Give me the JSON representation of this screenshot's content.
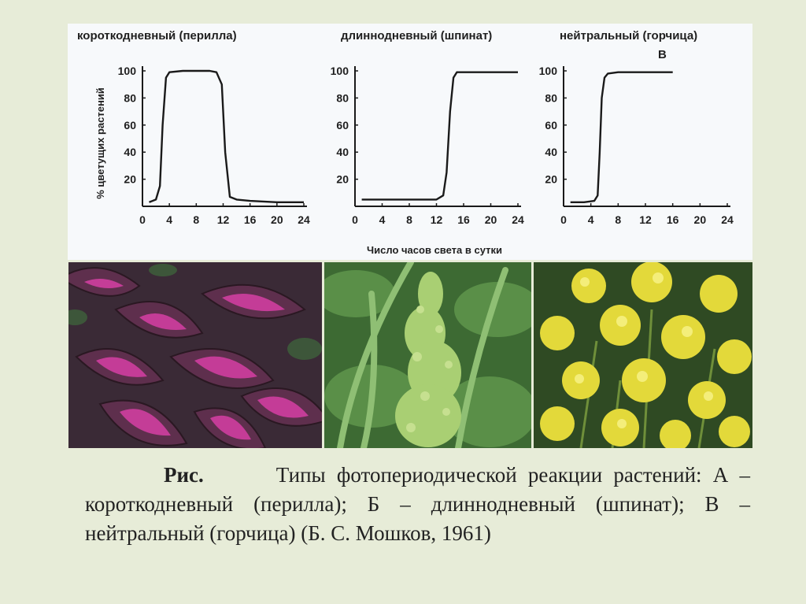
{
  "chart_data": [
    {
      "type": "line",
      "title": "короткодневный (перилла)",
      "ylabel": "% цветущих растений",
      "xticks": [
        "0",
        "4",
        "8",
        "12",
        "16",
        "20",
        "24"
      ],
      "yticks": [
        "20",
        "40",
        "60",
        "80",
        "100"
      ],
      "xlim": [
        0,
        24
      ],
      "ylim": [
        0,
        100
      ],
      "x": [
        1,
        2,
        2.6,
        3,
        3.5,
        4,
        6,
        8,
        10,
        11,
        11.8,
        12.3,
        13,
        14,
        16,
        20,
        24
      ],
      "y": [
        3,
        5,
        15,
        60,
        95,
        99,
        100,
        100,
        100,
        99,
        90,
        40,
        7,
        5,
        4,
        3,
        3
      ]
    },
    {
      "type": "line",
      "title": "длиннодневный (шпинат)",
      "xticks": [
        "0",
        "4",
        "8",
        "12",
        "16",
        "20",
        "24"
      ],
      "yticks": [
        "20",
        "40",
        "60",
        "80",
        "100"
      ],
      "xlim": [
        0,
        24
      ],
      "ylim": [
        0,
        100
      ],
      "x": [
        1,
        4,
        8,
        12,
        13,
        13.5,
        14,
        14.5,
        15,
        16,
        20,
        24
      ],
      "y": [
        5,
        5,
        5,
        5,
        8,
        25,
        70,
        95,
        99,
        99,
        99,
        99
      ]
    },
    {
      "type": "line",
      "title": "нейтральный (горчица)",
      "xticks": [
        "0",
        "4",
        "8",
        "12",
        "16",
        "20",
        "24"
      ],
      "yticks": [
        "20",
        "40",
        "60",
        "80",
        "100"
      ],
      "xlim": [
        0,
        24
      ],
      "ylim": [
        0,
        100
      ],
      "x": [
        1,
        3,
        4.5,
        5,
        5.3,
        5.6,
        6,
        6.5,
        8,
        12,
        16
      ],
      "y": [
        3,
        3,
        4,
        8,
        40,
        80,
        95,
        98,
        99,
        99,
        99
      ]
    }
  ],
  "figure": {
    "xlabel": "Число часов света в сутки",
    "panel_letter": "В"
  },
  "caption": {
    "lead": "Рис.",
    "text": "Типы фотопериодической реакции растений: А – короткодневный (перилла); Б – длиннодневный (шпинат); В – нейтральный (горчица) (Б. С. Мошков, 1961)"
  },
  "colors": {
    "background": "#e7ecd8",
    "figure_bg": "#f7f9fb",
    "line": "#1a1a1a",
    "text": "#222222"
  }
}
